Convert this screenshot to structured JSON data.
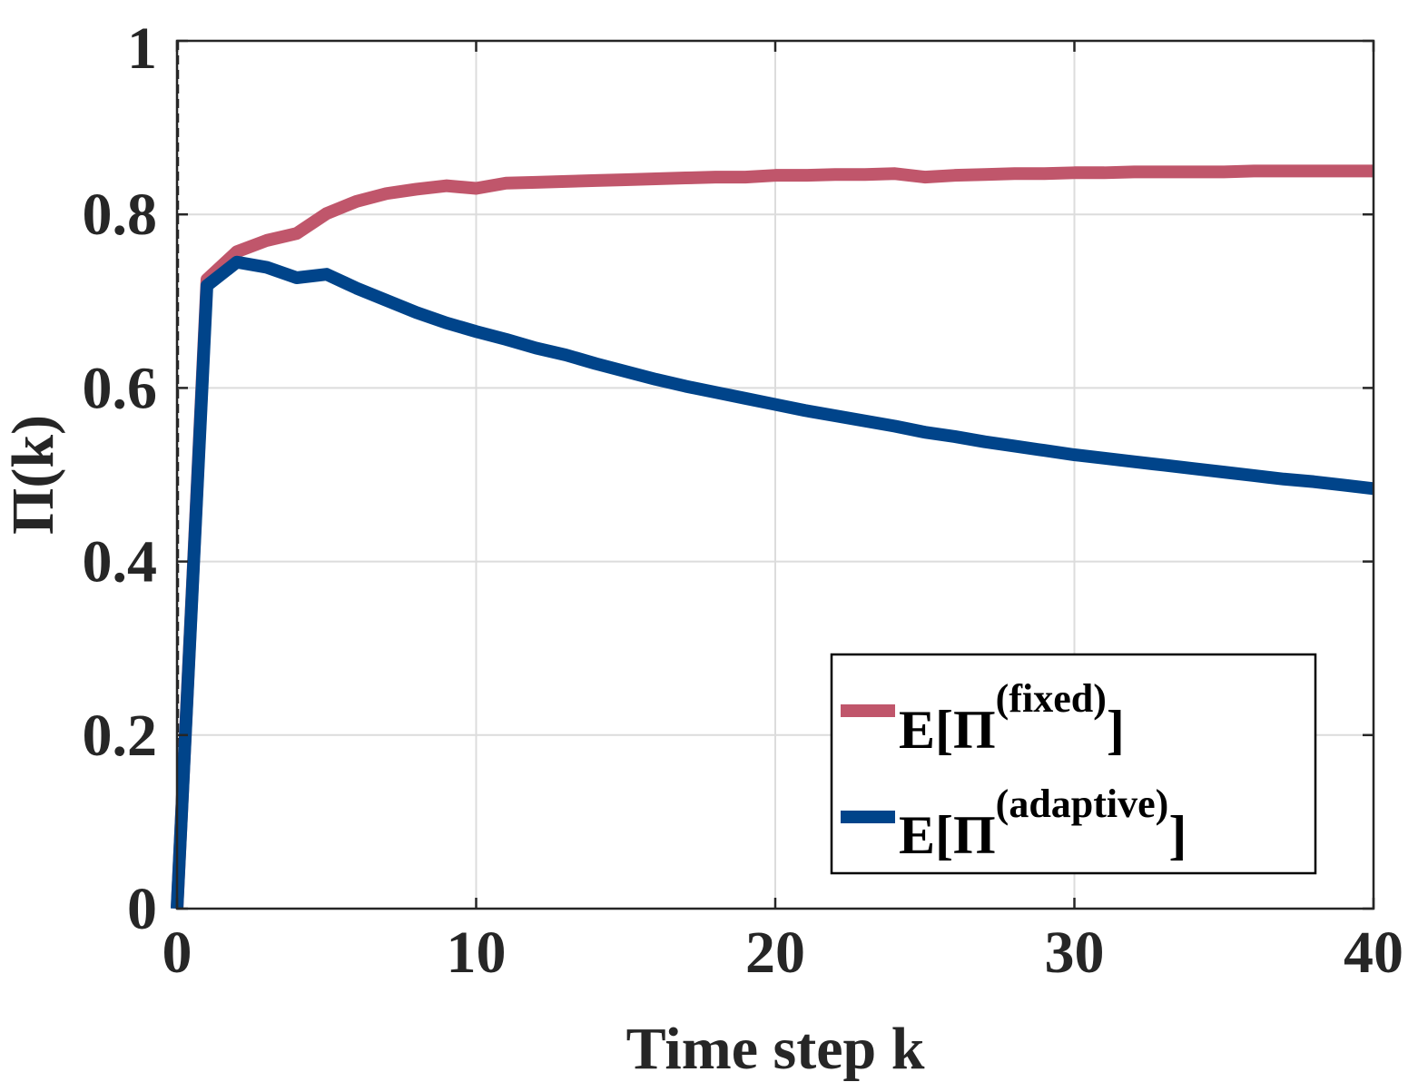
{
  "chart_data": {
    "type": "line",
    "xlabel": "Time step k",
    "ylabel": "Π(k)",
    "xlim": [
      0,
      40
    ],
    "ylim": [
      0,
      1
    ],
    "x_ticks": [
      "0",
      "10",
      "20",
      "30",
      "40"
    ],
    "y_ticks": [
      "0",
      "0.2",
      "0.4",
      "0.6",
      "0.8",
      "1"
    ],
    "grid": true,
    "legend_placement": "bottom-right",
    "x": [
      0,
      1,
      2,
      3,
      4,
      5,
      6,
      7,
      8,
      9,
      10,
      11,
      12,
      13,
      14,
      15,
      16,
      17,
      18,
      19,
      20,
      21,
      22,
      23,
      24,
      25,
      26,
      27,
      28,
      29,
      30,
      31,
      32,
      33,
      34,
      35,
      36,
      37,
      38,
      39,
      40
    ],
    "series": [
      {
        "legend_main": "E[Π",
        "legend_sup": "(fixed)",
        "legend_close": "]",
        "color": "#c0566b",
        "values": [
          0.0,
          0.725,
          0.757,
          0.77,
          0.778,
          0.801,
          0.815,
          0.824,
          0.829,
          0.833,
          0.83,
          0.836,
          0.837,
          0.838,
          0.839,
          0.84,
          0.841,
          0.842,
          0.843,
          0.843,
          0.845,
          0.845,
          0.846,
          0.846,
          0.847,
          0.843,
          0.845,
          0.846,
          0.847,
          0.847,
          0.848,
          0.848,
          0.849,
          0.849,
          0.849,
          0.849,
          0.85,
          0.85,
          0.85,
          0.85,
          0.85
        ]
      },
      {
        "legend_main": "E[Π",
        "legend_sup": "(adaptive)",
        "legend_close": "]",
        "color": "#00448a",
        "values": [
          0.0,
          0.718,
          0.745,
          0.739,
          0.727,
          0.731,
          0.715,
          0.701,
          0.687,
          0.675,
          0.665,
          0.656,
          0.646,
          0.638,
          0.628,
          0.619,
          0.61,
          0.602,
          0.595,
          0.588,
          0.581,
          0.574,
          0.568,
          0.562,
          0.556,
          0.549,
          0.544,
          0.538,
          0.533,
          0.528,
          0.523,
          0.519,
          0.515,
          0.511,
          0.507,
          0.503,
          0.499,
          0.495,
          0.492,
          0.488,
          0.484
        ]
      }
    ]
  }
}
